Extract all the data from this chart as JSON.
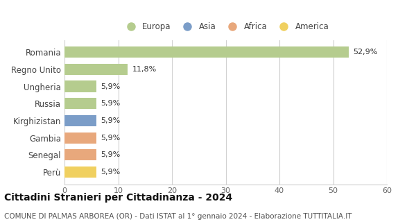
{
  "categories": [
    "Romania",
    "Regno Unito",
    "Ungheria",
    "Russia",
    "Kirghizistan",
    "Gambia",
    "Senegal",
    "Perù"
  ],
  "values": [
    52.9,
    11.8,
    5.9,
    5.9,
    5.9,
    5.9,
    5.9,
    5.9
  ],
  "labels": [
    "52,9%",
    "11,8%",
    "5,9%",
    "5,9%",
    "5,9%",
    "5,9%",
    "5,9%",
    "5,9%"
  ],
  "bar_colors": [
    "#b5cc8e",
    "#b5cc8e",
    "#b5cc8e",
    "#b5cc8e",
    "#7b9dc8",
    "#e8a87c",
    "#e8a87c",
    "#f0d060"
  ],
  "legend_labels": [
    "Europa",
    "Asia",
    "Africa",
    "America"
  ],
  "legend_colors": [
    "#b5cc8e",
    "#7b9dc8",
    "#e8a87c",
    "#f0d060"
  ],
  "xlim": [
    0,
    60
  ],
  "xticks": [
    0,
    10,
    20,
    30,
    40,
    50,
    60
  ],
  "title": "Cittadini Stranieri per Cittadinanza - 2024",
  "subtitle": "COMUNE DI PALMAS ARBOREA (OR) - Dati ISTAT al 1° gennaio 2024 - Elaborazione TUTTITALIA.IT",
  "background_color": "#ffffff",
  "grid_color": "#d0d0d0",
  "label_fontsize": 8,
  "title_fontsize": 10,
  "subtitle_fontsize": 7.5,
  "ytick_fontsize": 8.5,
  "xtick_fontsize": 8
}
